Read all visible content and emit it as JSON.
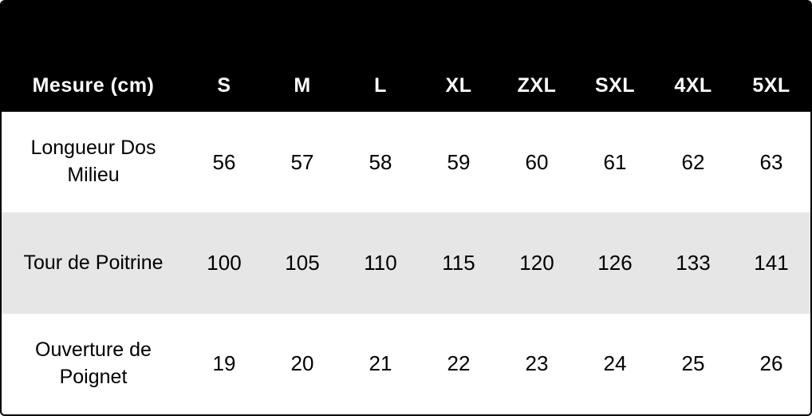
{
  "chart_data": {
    "type": "table",
    "title": "Mesure (cm)",
    "unit": "cm",
    "columns": [
      "Mesure (cm)",
      "S",
      "M",
      "L",
      "XL",
      "ZXL",
      "SXL",
      "4XL",
      "5XL"
    ],
    "rows": [
      {
        "label": "Longueur Dos Milieu",
        "values": [
          "56",
          "57",
          "58",
          "59",
          "60",
          "61",
          "62",
          "63"
        ]
      },
      {
        "label": "Tour de Poitrine",
        "values": [
          "100",
          "105",
          "110",
          "115",
          "120",
          "126",
          "133",
          "141"
        ]
      },
      {
        "label": "Ouverture de Poignet",
        "values": [
          "19",
          "20",
          "21",
          "22",
          "23",
          "24",
          "25",
          "26"
        ]
      }
    ],
    "layout": {
      "zebra_striping": true,
      "header_position": "top",
      "header_text_align": "bottom-center"
    },
    "colors": {
      "header_bg": "#000000",
      "header_text": "#ffffff",
      "row_bg": "#ffffff",
      "alt_row_bg": "#e6e6e6",
      "body_text": "#000000",
      "border": "#000000"
    }
  }
}
